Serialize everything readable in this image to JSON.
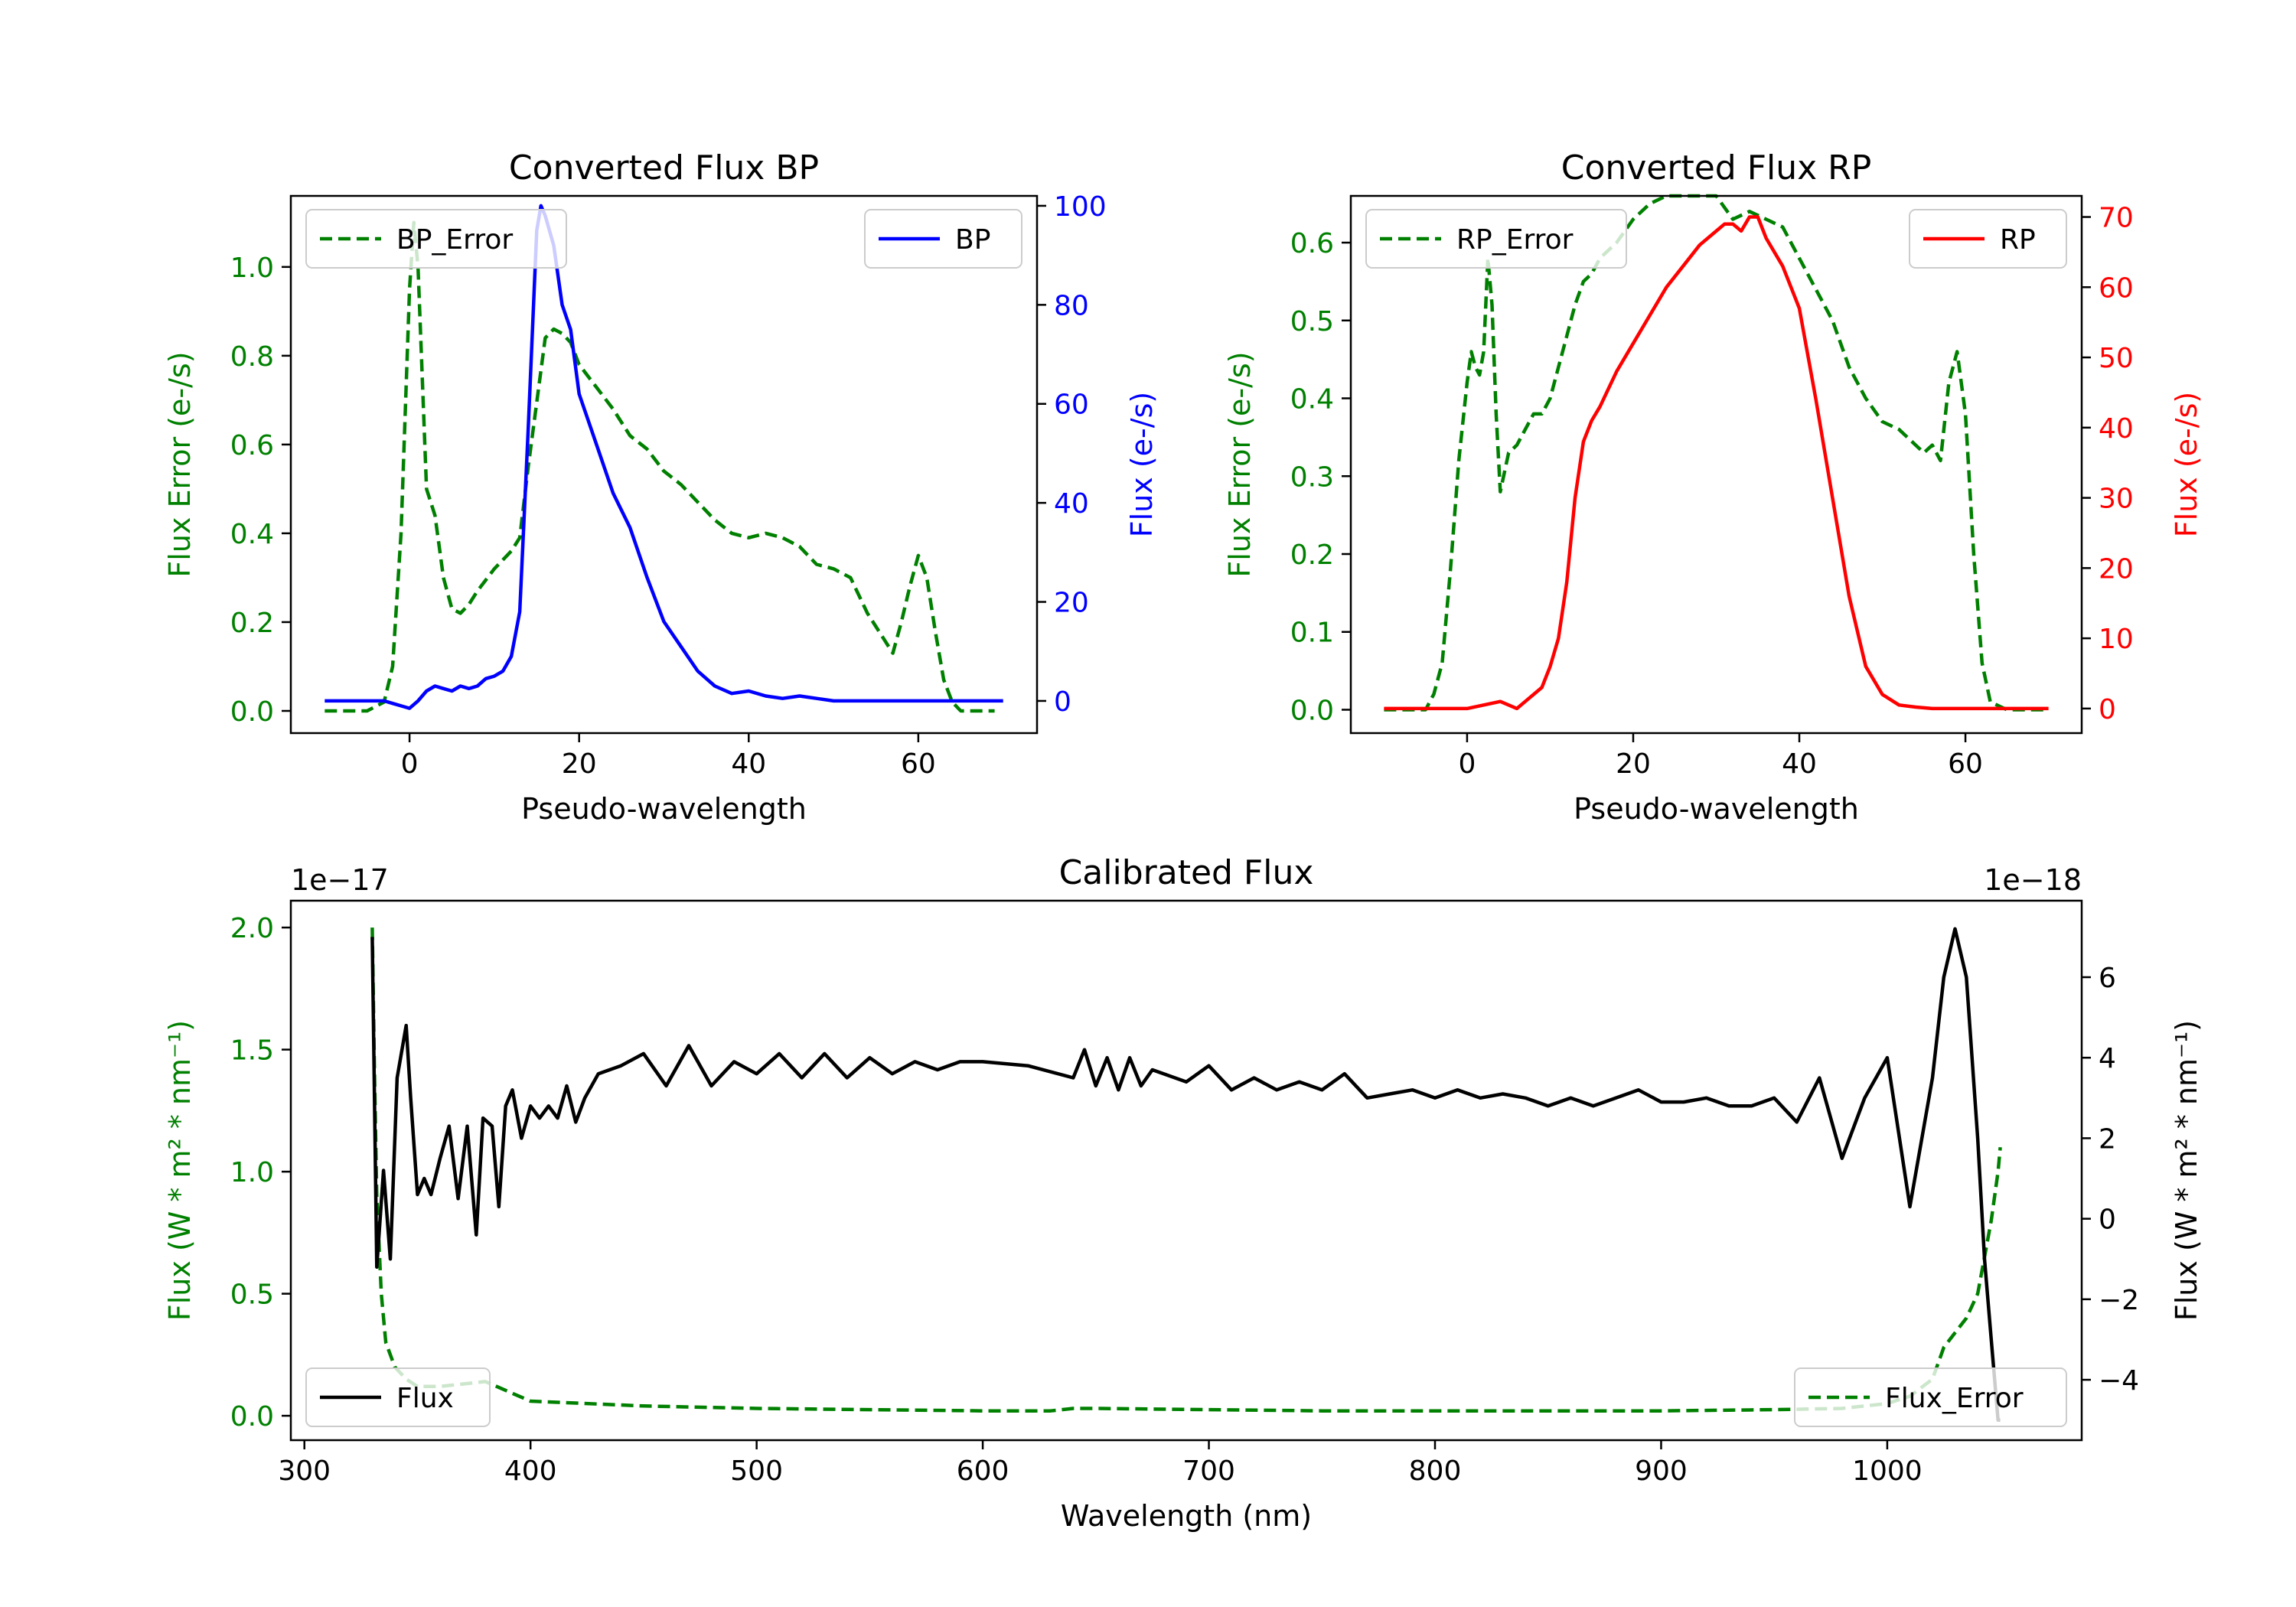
{
  "colors": {
    "green": "#008000",
    "blue": "#0000ff",
    "red": "#ff0000",
    "black": "#000000"
  },
  "chart_data": [
    {
      "id": "bp",
      "type": "line",
      "title": "Converted Flux BP",
      "xlabel": "Pseudo-wavelength",
      "ylabel_left": "Flux Error (e-/s)",
      "ylabel_right": "Flux (e-/s)",
      "xlim": [
        -14,
        74
      ],
      "ylim_left": [
        -0.05,
        1.16
      ],
      "ylim_right": [
        -6.5,
        102
      ],
      "xticks": [
        0,
        20,
        40,
        60
      ],
      "yticks_left": [
        0.0,
        0.2,
        0.4,
        0.6,
        0.8,
        1.0
      ],
      "yticks_right": [
        0,
        20,
        40,
        60,
        80,
        100
      ],
      "legend_left": "BP_Error",
      "legend_right": "BP",
      "series": [
        {
          "name": "BP_Error",
          "axis": "left",
          "style": "dashed",
          "color": "#008000",
          "x": [
            -10,
            -5,
            -3,
            -2,
            -1,
            0,
            0.5,
            1,
            2,
            3,
            4,
            5,
            6,
            7,
            8,
            10,
            12,
            13,
            14,
            16,
            17,
            18,
            19,
            20,
            22,
            24,
            26,
            28,
            30,
            32,
            34,
            36,
            38,
            40,
            42,
            44,
            46,
            48,
            50,
            52,
            54,
            56,
            57,
            58,
            59,
            60,
            61,
            62,
            63,
            64,
            65,
            67,
            69
          ],
          "y": [
            0.0,
            0.0,
            0.02,
            0.1,
            0.4,
            0.95,
            1.1,
            1.0,
            0.5,
            0.44,
            0.3,
            0.23,
            0.22,
            0.24,
            0.27,
            0.32,
            0.36,
            0.39,
            0.55,
            0.84,
            0.86,
            0.85,
            0.83,
            0.78,
            0.73,
            0.68,
            0.62,
            0.59,
            0.54,
            0.51,
            0.47,
            0.43,
            0.4,
            0.39,
            0.4,
            0.39,
            0.37,
            0.33,
            0.32,
            0.3,
            0.22,
            0.16,
            0.13,
            0.2,
            0.28,
            0.35,
            0.3,
            0.18,
            0.07,
            0.02,
            0.0,
            0.0,
            0.0
          ]
        },
        {
          "name": "BP",
          "axis": "right",
          "style": "solid",
          "color": "#0000ff",
          "x": [
            -10,
            -5,
            -3,
            -2,
            -1,
            0,
            1,
            2,
            3,
            4,
            5,
            6,
            7,
            8,
            9,
            10,
            11,
            12,
            13,
            14,
            15,
            15.5,
            16,
            17,
            18,
            19,
            20,
            22,
            24,
            26,
            28,
            30,
            32,
            34,
            36,
            38,
            40,
            42,
            44,
            46,
            48,
            50,
            54,
            58,
            62,
            66,
            70
          ],
          "y": [
            0,
            0,
            0,
            -0.5,
            -1,
            -1.5,
            0,
            2,
            3,
            2.5,
            2,
            3,
            2.5,
            3,
            4.5,
            5,
            6,
            9,
            18,
            55,
            95,
            100,
            98,
            92,
            80,
            75,
            62,
            52,
            42,
            35,
            25,
            16,
            11,
            6,
            3,
            1.5,
            2,
            1,
            0.5,
            1,
            0.5,
            0,
            0,
            0,
            0,
            0,
            0
          ]
        }
      ]
    },
    {
      "id": "rp",
      "type": "line",
      "title": "Converted Flux RP",
      "xlabel": "Pseudo-wavelength",
      "ylabel_left": "Flux Error (e-/s)",
      "ylabel_right": "Flux (e-/s)",
      "xlim": [
        -14,
        74
      ],
      "ylim_left": [
        -0.03,
        0.66
      ],
      "ylim_right": [
        -3.5,
        73
      ],
      "xticks": [
        0,
        20,
        40,
        60
      ],
      "yticks_left": [
        0.0,
        0.1,
        0.2,
        0.3,
        0.4,
        0.5,
        0.6
      ],
      "yticks_right": [
        0,
        10,
        20,
        30,
        40,
        50,
        60,
        70
      ],
      "legend_left": "RP_Error",
      "legend_right": "RP",
      "series": [
        {
          "name": "RP_Error",
          "axis": "left",
          "style": "dashed",
          "color": "#008000",
          "x": [
            -10,
            -5,
            -4,
            -3,
            -2,
            -1,
            0,
            0.5,
            1,
            1.5,
            2,
            2.5,
            3,
            3.5,
            4,
            5,
            6,
            7,
            8,
            9,
            10,
            11,
            12,
            13,
            14,
            15,
            16,
            18,
            20,
            22,
            24,
            26,
            28,
            30,
            32,
            34,
            36,
            38,
            40,
            42,
            44,
            46,
            48,
            50,
            52,
            54,
            55,
            56,
            57,
            58,
            59,
            60,
            61,
            62,
            63,
            65,
            70
          ],
          "y": [
            0.0,
            0.0,
            0.02,
            0.06,
            0.18,
            0.32,
            0.42,
            0.46,
            0.44,
            0.43,
            0.46,
            0.58,
            0.52,
            0.38,
            0.28,
            0.33,
            0.34,
            0.36,
            0.38,
            0.38,
            0.4,
            0.44,
            0.48,
            0.52,
            0.55,
            0.56,
            0.58,
            0.6,
            0.63,
            0.65,
            0.66,
            0.66,
            0.66,
            0.66,
            0.63,
            0.64,
            0.63,
            0.62,
            0.58,
            0.54,
            0.5,
            0.44,
            0.4,
            0.37,
            0.36,
            0.34,
            0.33,
            0.34,
            0.32,
            0.42,
            0.46,
            0.38,
            0.2,
            0.06,
            0.01,
            0.0,
            0.0
          ]
        },
        {
          "name": "RP",
          "axis": "right",
          "style": "solid",
          "color": "#ff0000",
          "x": [
            -10,
            -5,
            0,
            2,
            4,
            5,
            6,
            7,
            8,
            9,
            10,
            11,
            12,
            13,
            14,
            15,
            16,
            18,
            20,
            22,
            24,
            26,
            28,
            30,
            31,
            32,
            33,
            34,
            35,
            36,
            38,
            40,
            42,
            44,
            46,
            48,
            50,
            52,
            54,
            56,
            58,
            60,
            65,
            70
          ],
          "y": [
            0,
            0,
            0,
            0.5,
            1,
            0.5,
            0,
            1,
            2,
            3,
            6,
            10,
            18,
            30,
            38,
            41,
            43,
            48,
            52,
            56,
            60,
            63,
            66,
            68,
            69,
            69,
            68,
            70,
            70,
            67,
            63,
            57,
            44,
            30,
            16,
            6,
            2,
            0.5,
            0.2,
            0,
            0,
            0,
            0,
            0
          ]
        }
      ]
    },
    {
      "id": "calibrated",
      "type": "line",
      "title": "Calibrated Flux",
      "xlabel": "Wavelength (nm)",
      "ylabel_left": "Flux (W * m² * nm⁻¹)",
      "ylabel_right": "Flux (W * m² * nm⁻¹)",
      "left_scale_label": "1e−17",
      "right_scale_label": "1e−18",
      "xlim": [
        294,
        1086
      ],
      "ylim_left": [
        -0.1,
        2.11
      ],
      "ylim_right": [
        -5.5,
        7.9
      ],
      "xticks": [
        300,
        400,
        500,
        600,
        700,
        800,
        900,
        1000
      ],
      "yticks_left": [
        0.0,
        0.5,
        1.0,
        1.5,
        2.0
      ],
      "yticks_left_labels": [
        "0.0",
        "0.5",
        "1.0",
        "1.5",
        "2.0"
      ],
      "yticks_right": [
        -4,
        -2,
        0,
        2,
        4,
        6
      ],
      "yticks_right_labels": [
        "−4",
        "−2",
        "0",
        "2",
        "4",
        "6"
      ],
      "legend_left": "Flux",
      "legend_right": "Flux_Error",
      "series": [
        {
          "name": "Flux_Error",
          "axis": "left",
          "style": "dashed",
          "color": "#008000",
          "x": [
            330,
            331,
            332,
            334,
            336,
            340,
            345,
            350,
            360,
            370,
            380,
            390,
            400,
            450,
            500,
            550,
            600,
            630,
            640,
            650,
            700,
            750,
            800,
            850,
            900,
            950,
            980,
            1000,
            1010,
            1020,
            1025,
            1030,
            1035,
            1040,
            1043,
            1046,
            1049,
            1050
          ],
          "y": [
            2.0,
            1.4,
            0.9,
            0.5,
            0.3,
            0.2,
            0.15,
            0.12,
            0.12,
            0.13,
            0.14,
            0.1,
            0.06,
            0.04,
            0.03,
            0.025,
            0.02,
            0.02,
            0.03,
            0.03,
            0.025,
            0.02,
            0.02,
            0.02,
            0.02,
            0.025,
            0.03,
            0.05,
            0.08,
            0.15,
            0.28,
            0.34,
            0.4,
            0.5,
            0.65,
            0.8,
            1.0,
            1.1
          ]
        },
        {
          "name": "Flux",
          "axis": "right",
          "style": "solid",
          "color": "#000000",
          "x": [
            330,
            332,
            335,
            338,
            341,
            345,
            347,
            350,
            353,
            356,
            360,
            364,
            368,
            372,
            376,
            379,
            383,
            386,
            389,
            392,
            396,
            400,
            404,
            408,
            412,
            416,
            420,
            424,
            430,
            440,
            450,
            460,
            470,
            480,
            490,
            500,
            510,
            520,
            530,
            540,
            550,
            560,
            570,
            580,
            590,
            600,
            620,
            640,
            645,
            650,
            655,
            660,
            665,
            670,
            675,
            680,
            690,
            700,
            710,
            720,
            730,
            740,
            750,
            760,
            770,
            780,
            790,
            800,
            810,
            820,
            830,
            840,
            850,
            860,
            870,
            880,
            890,
            900,
            910,
            920,
            930,
            940,
            950,
            960,
            970,
            980,
            990,
            1000,
            1010,
            1020,
            1025,
            1030,
            1035,
            1040,
            1043,
            1046,
            1049,
            1050
          ],
          "y": [
            7.0,
            -1.2,
            1.2,
            -1.0,
            3.5,
            4.8,
            3.0,
            0.6,
            1.0,
            0.6,
            1.5,
            2.3,
            0.5,
            2.3,
            -0.4,
            2.5,
            2.3,
            0.3,
            2.8,
            3.2,
            2.0,
            2.8,
            2.5,
            2.8,
            2.5,
            3.3,
            2.4,
            3.0,
            3.6,
            3.8,
            4.1,
            3.3,
            4.3,
            3.3,
            3.9,
            3.6,
            4.1,
            3.5,
            4.1,
            3.5,
            4.0,
            3.6,
            3.9,
            3.7,
            3.9,
            3.9,
            3.8,
            3.5,
            4.2,
            3.3,
            4.0,
            3.2,
            4.0,
            3.3,
            3.7,
            3.6,
            3.4,
            3.8,
            3.2,
            3.5,
            3.2,
            3.4,
            3.2,
            3.6,
            3.0,
            3.1,
            3.2,
            3.0,
            3.2,
            3.0,
            3.1,
            3.0,
            2.8,
            3.0,
            2.8,
            3.0,
            3.2,
            2.9,
            2.9,
            3.0,
            2.8,
            2.8,
            3.0,
            2.4,
            3.5,
            1.5,
            3.0,
            4.0,
            0.3,
            3.5,
            6.0,
            7.2,
            6.0,
            2.0,
            -1.0,
            -3.0,
            -5.0,
            -5.0
          ]
        }
      ]
    }
  ]
}
